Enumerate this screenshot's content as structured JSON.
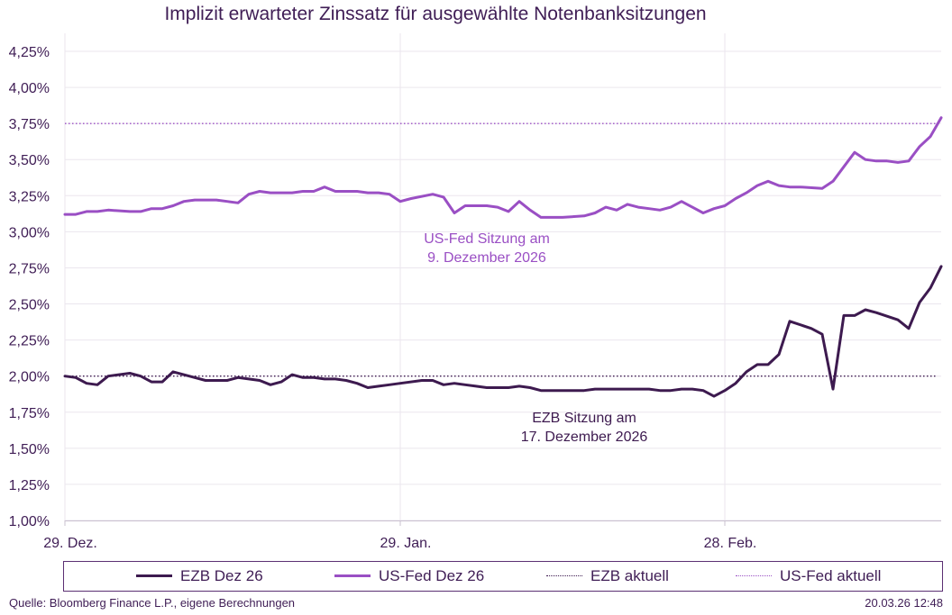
{
  "chart_data": {
    "type": "line",
    "title": "Implizit erwarteter Zinssatz für ausgewählte Notenbanksitzungen",
    "ylim": [
      1.0,
      4.25
    ],
    "yticks": [
      "1,00%",
      "1,25%",
      "1,50%",
      "1,75%",
      "2,00%",
      "2,25%",
      "2,50%",
      "2,75%",
      "3,00%",
      "3,25%",
      "3,50%",
      "3,75%",
      "4,00%",
      "4,25%"
    ],
    "ytick_values": [
      1.0,
      1.25,
      1.5,
      1.75,
      2.0,
      2.25,
      2.5,
      2.75,
      3.0,
      3.25,
      3.5,
      3.75,
      4.0,
      4.25
    ],
    "xlim": [
      0,
      81
    ],
    "xticks": [
      {
        "label": "29. Dez.",
        "x": 0
      },
      {
        "label": "29. Jan.",
        "x": 31
      },
      {
        "label": "28. Feb.",
        "x": 61
      }
    ],
    "grid": true,
    "legend_position": "bottom",
    "series": [
      {
        "name": "EZB Dez 26",
        "color": "#3d1a4f",
        "style": "solid",
        "points": [
          [
            0,
            2.0
          ],
          [
            1,
            1.99
          ],
          [
            2,
            1.95
          ],
          [
            3,
            1.94
          ],
          [
            4,
            2.0
          ],
          [
            6,
            2.02
          ],
          [
            7,
            2.0
          ],
          [
            8,
            1.96
          ],
          [
            9,
            1.96
          ],
          [
            10,
            2.03
          ],
          [
            12,
            1.99
          ],
          [
            13,
            1.97
          ],
          [
            14,
            1.97
          ],
          [
            15,
            1.97
          ],
          [
            16,
            1.99
          ],
          [
            17,
            1.98
          ],
          [
            18,
            1.97
          ],
          [
            19,
            1.94
          ],
          [
            20,
            1.96
          ],
          [
            21,
            2.01
          ],
          [
            22,
            1.99
          ],
          [
            23,
            1.99
          ],
          [
            24,
            1.98
          ],
          [
            25,
            1.98
          ],
          [
            26,
            1.97
          ],
          [
            27,
            1.95
          ],
          [
            28,
            1.92
          ],
          [
            29,
            1.93
          ],
          [
            30,
            1.94
          ],
          [
            31,
            1.95
          ],
          [
            33,
            1.97
          ],
          [
            34,
            1.97
          ],
          [
            35,
            1.94
          ],
          [
            36,
            1.95
          ],
          [
            37,
            1.94
          ],
          [
            38,
            1.93
          ],
          [
            39,
            1.92
          ],
          [
            40,
            1.92
          ],
          [
            41,
            1.92
          ],
          [
            42,
            1.93
          ],
          [
            43,
            1.92
          ],
          [
            44,
            1.9
          ],
          [
            45,
            1.9
          ],
          [
            46,
            1.9
          ],
          [
            48,
            1.9
          ],
          [
            49,
            1.91
          ],
          [
            50,
            1.91
          ],
          [
            51,
            1.91
          ],
          [
            52,
            1.91
          ],
          [
            53,
            1.91
          ],
          [
            54,
            1.91
          ],
          [
            55,
            1.9
          ],
          [
            56,
            1.9
          ],
          [
            57,
            1.91
          ],
          [
            58,
            1.91
          ],
          [
            59,
            1.9
          ],
          [
            60,
            1.86
          ],
          [
            61,
            1.9
          ],
          [
            62,
            1.95
          ],
          [
            63,
            2.03
          ],
          [
            64,
            2.08
          ],
          [
            65,
            2.08
          ],
          [
            66,
            2.15
          ],
          [
            67,
            2.38
          ],
          [
            69,
            2.33
          ],
          [
            70,
            2.29
          ],
          [
            71,
            1.91
          ],
          [
            72,
            2.42
          ],
          [
            73,
            2.42
          ],
          [
            74,
            2.46
          ],
          [
            75,
            2.44
          ],
          [
            77,
            2.39
          ],
          [
            78,
            2.33
          ],
          [
            79,
            2.51
          ],
          [
            80,
            2.61
          ],
          [
            81,
            2.76
          ]
        ]
      },
      {
        "name": "US-Fed Dez 26",
        "color": "#9a4fc4",
        "style": "solid",
        "points": [
          [
            0,
            3.12
          ],
          [
            1,
            3.12
          ],
          [
            2,
            3.14
          ],
          [
            3,
            3.14
          ],
          [
            4,
            3.15
          ],
          [
            6,
            3.14
          ],
          [
            7,
            3.14
          ],
          [
            8,
            3.16
          ],
          [
            9,
            3.16
          ],
          [
            10,
            3.18
          ],
          [
            11,
            3.21
          ],
          [
            12,
            3.22
          ],
          [
            13,
            3.22
          ],
          [
            14,
            3.22
          ],
          [
            15,
            3.21
          ],
          [
            16,
            3.2
          ],
          [
            17,
            3.26
          ],
          [
            18,
            3.28
          ],
          [
            19,
            3.27
          ],
          [
            20,
            3.27
          ],
          [
            21,
            3.27
          ],
          [
            22,
            3.28
          ],
          [
            23,
            3.28
          ],
          [
            24,
            3.31
          ],
          [
            25,
            3.28
          ],
          [
            26,
            3.28
          ],
          [
            27,
            3.28
          ],
          [
            28,
            3.27
          ],
          [
            29,
            3.27
          ],
          [
            30,
            3.26
          ],
          [
            31,
            3.21
          ],
          [
            32,
            3.23
          ],
          [
            34,
            3.26
          ],
          [
            35,
            3.24
          ],
          [
            36,
            3.13
          ],
          [
            37,
            3.18
          ],
          [
            38,
            3.18
          ],
          [
            39,
            3.18
          ],
          [
            40,
            3.17
          ],
          [
            41,
            3.14
          ],
          [
            42,
            3.21
          ],
          [
            43,
            3.15
          ],
          [
            44,
            3.1
          ],
          [
            45,
            3.1
          ],
          [
            46,
            3.1
          ],
          [
            48,
            3.11
          ],
          [
            49,
            3.13
          ],
          [
            50,
            3.17
          ],
          [
            51,
            3.15
          ],
          [
            52,
            3.19
          ],
          [
            53,
            3.17
          ],
          [
            54,
            3.16
          ],
          [
            55,
            3.15
          ],
          [
            56,
            3.17
          ],
          [
            57,
            3.21
          ],
          [
            58,
            3.17
          ],
          [
            59,
            3.13
          ],
          [
            60,
            3.16
          ],
          [
            61,
            3.18
          ],
          [
            62,
            3.23
          ],
          [
            63,
            3.27
          ],
          [
            64,
            3.32
          ],
          [
            65,
            3.35
          ],
          [
            66,
            3.32
          ],
          [
            67,
            3.31
          ],
          [
            68,
            3.31
          ],
          [
            70,
            3.3
          ],
          [
            71,
            3.35
          ],
          [
            72,
            3.45
          ],
          [
            73,
            3.55
          ],
          [
            74,
            3.5
          ],
          [
            75,
            3.49
          ],
          [
            76,
            3.49
          ],
          [
            77,
            3.48
          ],
          [
            78,
            3.49
          ],
          [
            79,
            3.59
          ],
          [
            80,
            3.66
          ],
          [
            81,
            3.79
          ]
        ]
      },
      {
        "name": "EZB aktuell",
        "color": "#3d1a4f",
        "style": "dotted",
        "value": 2.0
      },
      {
        "name": "US-Fed aktuell",
        "color": "#9a4fc4",
        "style": "dotted",
        "value": 3.75
      }
    ],
    "annotations": [
      {
        "lines": [
          "US-Fed Sitzung am",
          "9. Dezember 2026"
        ],
        "x": 39,
        "y": 2.92,
        "color": "#9a4fc4"
      },
      {
        "lines": [
          "EZB Sitzung am",
          "17. Dezember 2026"
        ],
        "x": 48,
        "y": 1.68,
        "color": "#3d1a4f"
      }
    ]
  },
  "footer": {
    "source": "Quelle: Bloomberg Finance L.P., eigene Berechnungen",
    "stamp": "20.03.26   12:48"
  }
}
